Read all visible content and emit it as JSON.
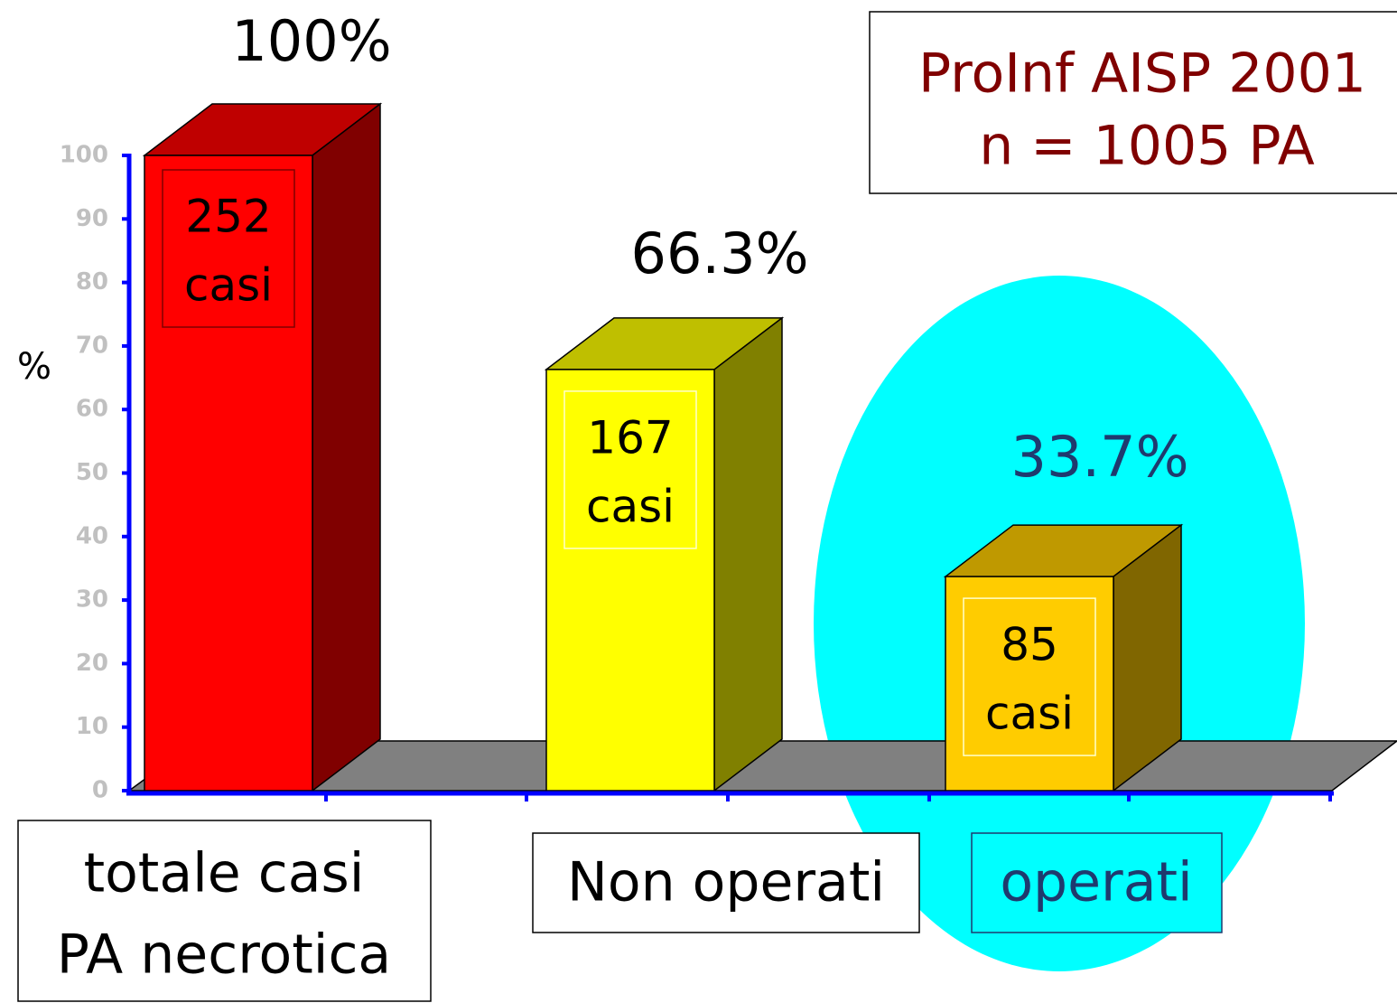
{
  "chart_data": {
    "type": "bar3d",
    "title": [
      "ProInf AISP 2001",
      "n = 1005 PA"
    ],
    "y_label": "%",
    "categories": [
      [
        "totale casi",
        "PA necrotica"
      ],
      [
        "Non operati"
      ],
      [
        "operati"
      ]
    ],
    "values": [
      100,
      66.3,
      33.7
    ],
    "value_labels": [
      "100%",
      "66.3%",
      "33.7%"
    ],
    "annotations": [
      [
        "252",
        "casi"
      ],
      [
        "167",
        "casi"
      ],
      [
        "85",
        "casi"
      ]
    ],
    "colors": [
      "#ff0000",
      "#ffff00",
      "#ffcc00"
    ],
    "ylim": [
      0,
      100
    ],
    "yticks": [
      0,
      10,
      20,
      30,
      40,
      50,
      60,
      70,
      80,
      90,
      100
    ]
  }
}
